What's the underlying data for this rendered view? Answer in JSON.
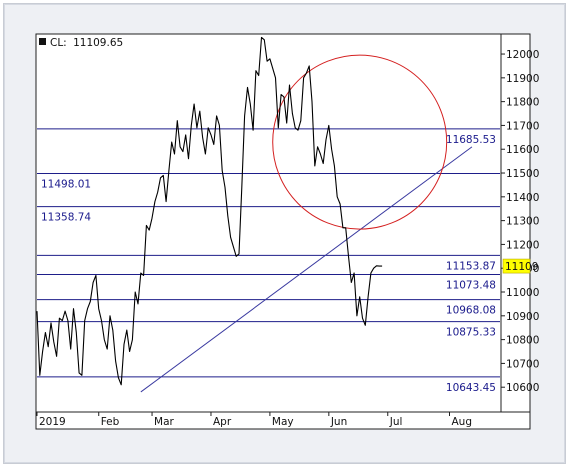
{
  "chart_data": {
    "type": "line",
    "title": "",
    "xlabel": "",
    "ylabel": "",
    "last_readout": {
      "prefix": "CL:",
      "value": "11109.65"
    },
    "current_price_tag": {
      "label": "11109",
      "value": 11109,
      "color": "#ffff00"
    },
    "ylim": [
      10500,
      12080
    ],
    "y_ticks": [
      10600,
      10700,
      10800,
      10900,
      11000,
      11100,
      11200,
      11300,
      11400,
      11500,
      11600,
      11700,
      11800,
      11900,
      12000
    ],
    "x_month_labels": [
      "2019",
      "Feb",
      "Mar",
      "Apr",
      "May",
      "Jun",
      "Jul",
      "Aug"
    ],
    "x_month_starts": [
      0,
      22,
      41,
      62,
      83,
      104,
      125,
      147
    ],
    "total_days": 166,
    "grid": false,
    "horizontal_levels": [
      {
        "value": 11685.53,
        "label": "11685.53",
        "label_side": "right"
      },
      {
        "value": 11498.01,
        "label": "11498.01",
        "label_side": "left"
      },
      {
        "value": 11358.74,
        "label": "11358.74",
        "label_side": "left"
      },
      {
        "value": 11153.87,
        "label": "11153.87",
        "label_side": "right"
      },
      {
        "value": 11073.48,
        "label": "11073.48",
        "label_side": "right"
      },
      {
        "value": 10968.08,
        "label": "10968.08",
        "label_side": "right"
      },
      {
        "value": 10875.33,
        "label": "10875.33",
        "label_side": "right"
      },
      {
        "value": 10643.45,
        "label": "10643.45",
        "label_side": "right"
      }
    ],
    "trendline": {
      "from": [
        37,
        10580
      ],
      "to": [
        155,
        11610
      ],
      "color": "#3a3aa0"
    },
    "circle_annotation": {
      "center": [
        115,
        11630
      ],
      "radius_days": 31,
      "color": "#d42020"
    },
    "series": [
      {
        "color": "#000000",
        "x": [
          0,
          1,
          2,
          3,
          4,
          5,
          6,
          7,
          8,
          9,
          10,
          11,
          12,
          13,
          14,
          15,
          16,
          17,
          18,
          19,
          20,
          21,
          22,
          23,
          24,
          25,
          26,
          27,
          28,
          29,
          30,
          31,
          32,
          33,
          34,
          35,
          36,
          37,
          38,
          39,
          40,
          41,
          42,
          43,
          44,
          45,
          46,
          47,
          48,
          49,
          50,
          51,
          52,
          53,
          54,
          55,
          56,
          57,
          58,
          59,
          60,
          61,
          62,
          63,
          64,
          65,
          66,
          67,
          68,
          69,
          70,
          71,
          72,
          73,
          74,
          75,
          76,
          77,
          78,
          79,
          80,
          81,
          82,
          83,
          84,
          85,
          86,
          87,
          88,
          89,
          90,
          91,
          92,
          93,
          94,
          95,
          96,
          97,
          98,
          99,
          100,
          101,
          102,
          103,
          104,
          105,
          106,
          107,
          108,
          109,
          110,
          111,
          112,
          113,
          114,
          115,
          116,
          117,
          118,
          119,
          120,
          121,
          122,
          123,
          124,
          125,
          126,
          127,
          128,
          129,
          130,
          131,
          132,
          133,
          134,
          135,
          136,
          137,
          138,
          139,
          140,
          141,
          142,
          143,
          144,
          145,
          146,
          147,
          148,
          149,
          150,
          151,
          152,
          153,
          154,
          155,
          156,
          157,
          158,
          159,
          160,
          161,
          162,
          163,
          164,
          165
        ],
        "values": [
          10920,
          10650,
          10750,
          10830,
          10770,
          10870,
          10790,
          10730,
          10890,
          10880,
          10920,
          10880,
          10760,
          10930,
          10830,
          10660,
          10650,
          10880,
          10930,
          10960,
          11040,
          11070,
          10930,
          10880,
          10800,
          10760,
          10900,
          10840,
          10710,
          10640,
          10610,
          10780,
          10840,
          10750,
          10800,
          11000,
          10950,
          11080,
          11070,
          11280,
          11260,
          11310,
          11380,
          11420,
          11480,
          11490,
          11380,
          11510,
          11630,
          11580,
          11720,
          11610,
          11590,
          11660,
          11560,
          11700,
          11790,
          11690,
          11760,
          11650,
          11580,
          11690,
          11660,
          11620,
          11740,
          11700,
          11510,
          11440,
          11320,
          11230,
          11190,
          11150,
          11160,
          11440,
          11740,
          11860,
          11790,
          11680,
          11930,
          11910,
          12070,
          12060,
          11970,
          11980,
          11940,
          11900,
          11690,
          11830,
          11820,
          11710,
          11870,
          11750,
          11690,
          11680,
          11720,
          11900,
          11920,
          11950,
          11800,
          11530,
          11610,
          11580,
          11540,
          11640,
          11700,
          11600,
          11530,
          11400,
          11370,
          11270,
          11270,
          11150,
          11040,
          11080,
          10900,
          10980,
          10890,
          10860,
          10980,
          11080,
          11100,
          11110,
          11109,
          11109,
          11109,
          11109,
          11109,
          11109,
          11109,
          11109,
          11109,
          11109,
          11109,
          11109,
          11109,
          11109,
          11109,
          11109,
          11109,
          11109,
          11109,
          11109,
          11109,
          11109,
          11109,
          11109,
          11109,
          11109,
          11109,
          11109,
          11109,
          11109,
          11109,
          11109,
          11109,
          11109,
          11109,
          11109,
          11109,
          11109,
          11109,
          11109,
          11109,
          11109,
          11109,
          11109
        ]
      }
    ]
  }
}
